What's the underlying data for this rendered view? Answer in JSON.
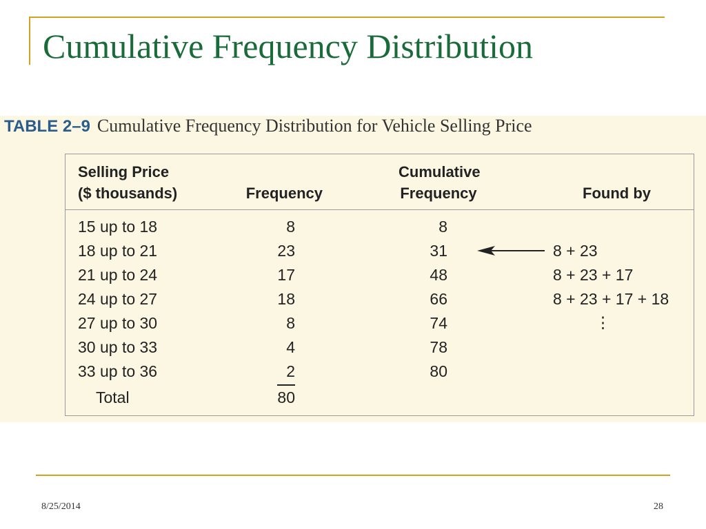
{
  "slide": {
    "title": "Cumulative Frequency Distribution",
    "footer_date": "8/25/2014",
    "page_number": "28"
  },
  "table": {
    "number": "TABLE 2–9",
    "caption": "Cumulative Frequency Distribution for Vehicle Selling Price",
    "headers": {
      "price_line1": "Selling Price",
      "price_line2": "($ thousands)",
      "frequency": "Frequency",
      "cumulative_line1": "Cumulative",
      "cumulative_line2": "Frequency",
      "found_by": "Found by"
    },
    "rows": [
      {
        "price": "15 up to 18",
        "frequency": "8",
        "cumulative": "8",
        "found_by": ""
      },
      {
        "price": "18 up to 21",
        "frequency": "23",
        "cumulative": "31",
        "found_by": "8 + 23"
      },
      {
        "price": "21 up to 24",
        "frequency": "17",
        "cumulative": "48",
        "found_by": "8 + 23 + 17"
      },
      {
        "price": "24 up to 27",
        "frequency": "18",
        "cumulative": "66",
        "found_by": "8 + 23 + 17 + 18"
      },
      {
        "price": "27 up to 30",
        "frequency": "8",
        "cumulative": "74",
        "found_by": ""
      },
      {
        "price": "30 up to 33",
        "frequency": "4",
        "cumulative": "78",
        "found_by": ""
      },
      {
        "price": "33 up to 36",
        "frequency": "2",
        "cumulative": "80",
        "found_by": ""
      }
    ],
    "continuation_mark": "⋮",
    "total_label": "Total",
    "total_value": "80"
  },
  "colors": {
    "title": "#1a6b3a",
    "accent_rule": "#d4a11e",
    "table_number": "#2a5c8c",
    "figure_background": "#fcf7e3"
  }
}
